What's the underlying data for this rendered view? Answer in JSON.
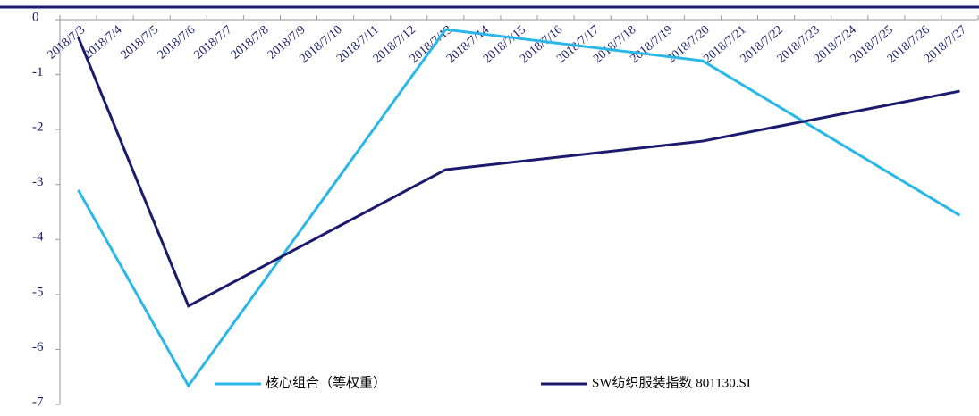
{
  "chart_data": {
    "type": "line",
    "categories": [
      "2018/7/3",
      "2018/7/4",
      "2018/7/5",
      "2018/7/6",
      "2018/7/7",
      "2018/7/8",
      "2018/7/9",
      "2018/7/10",
      "2018/7/11",
      "2018/7/12",
      "2018/7/13",
      "2018/7/14",
      "2018/7/15",
      "2018/7/16",
      "2018/7/17",
      "2018/7/18",
      "2018/7/19",
      "2018/7/20",
      "2018/7/21",
      "2018/7/22",
      "2018/7/23",
      "2018/7/24",
      "2018/7/25",
      "2018/7/26",
      "2018/7/27"
    ],
    "series": [
      {
        "name": "核心组合（等权重）",
        "color": "#29b6e8",
        "x": [
          "2018/7/3",
          "2018/7/6",
          "2018/7/13",
          "2018/7/20",
          "2018/7/27"
        ],
        "values": [
          -3.1,
          -6.66,
          -0.18,
          -0.75,
          -3.56
        ]
      },
      {
        "name": "SW纺织服装指数 801130.SI",
        "color": "#1a1a6e",
        "x": [
          "2018/7/3",
          "2018/7/6",
          "2018/7/13",
          "2018/7/20",
          "2018/7/27"
        ],
        "values": [
          -0.32,
          -5.21,
          -2.73,
          -2.21,
          -1.3
        ]
      }
    ],
    "ylim": [
      -7,
      0
    ],
    "yticks": [
      0,
      -1,
      -2,
      -3,
      -4,
      -5,
      -6,
      -7
    ],
    "legend": "bottom"
  }
}
